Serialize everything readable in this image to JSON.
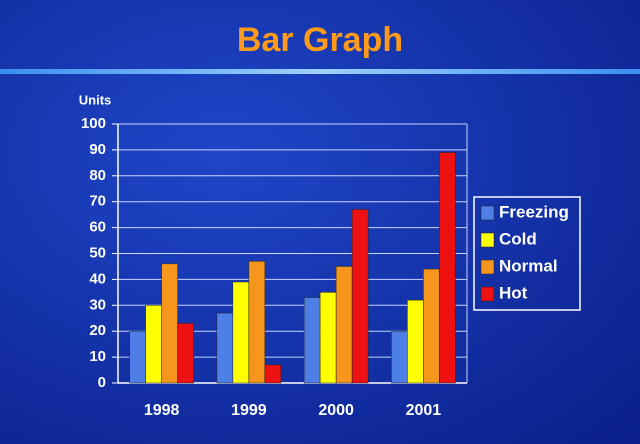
{
  "chart_data": {
    "type": "bar",
    "title": "Bar Graph",
    "y_label": "Units",
    "categories": [
      "1998",
      "1999",
      "2000",
      "2001"
    ],
    "series": [
      {
        "name": "Freezing",
        "color": "#4d7fe6",
        "values": [
          20,
          27,
          33,
          20
        ]
      },
      {
        "name": "Cold",
        "color": "#ffff00",
        "values": [
          30,
          39,
          35,
          32
        ]
      },
      {
        "name": "Normal",
        "color": "#f7961c",
        "values": [
          46,
          47,
          45,
          44
        ]
      },
      {
        "name": "Hot",
        "color": "#ee1111",
        "values": [
          23,
          7,
          67,
          89
        ]
      }
    ],
    "ylim": [
      0,
      100
    ],
    "yticks": [
      0,
      10,
      20,
      30,
      40,
      50,
      60,
      70,
      80,
      90,
      100
    ],
    "grid": true,
    "legend": "right"
  }
}
